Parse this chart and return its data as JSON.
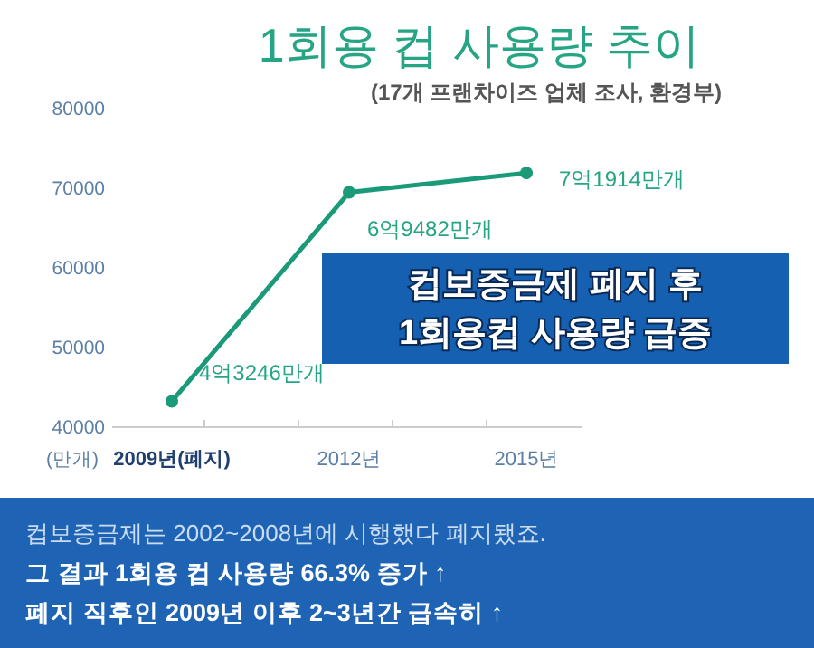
{
  "chart_data": {
    "type": "line",
    "title": "1회용 컵 사용량 추이",
    "subtitle": "(17개 프랜차이즈 업체 조사, 환경부)",
    "ylabel": "(만개)",
    "categories": [
      "2009년(폐지)",
      "2012년",
      "2015년"
    ],
    "series": [
      {
        "color": "#1a9a78",
        "values": [
          43246,
          69482,
          71914
        ]
      }
    ],
    "value_labels": [
      "4억3246만개",
      "6억9482만개",
      "7억1914만개"
    ],
    "ylim": [
      40000,
      80000
    ],
    "yticks": [
      40000,
      50000,
      60000,
      70000,
      80000
    ],
    "grid": false,
    "marker": "circle",
    "line_style": "solid",
    "annotations": [
      "컵보증금제 폐지 후",
      "1회용컵 사용량 급증",
      "컵보증금제는 2002~2008년에 시행했다 폐지됐죠.",
      "그 결과 1회용 컵 사용량 66.3% 증가 ↑",
      "폐지 직후인 2009년 이후 2~3년간 급속히 ↑"
    ]
  }
}
